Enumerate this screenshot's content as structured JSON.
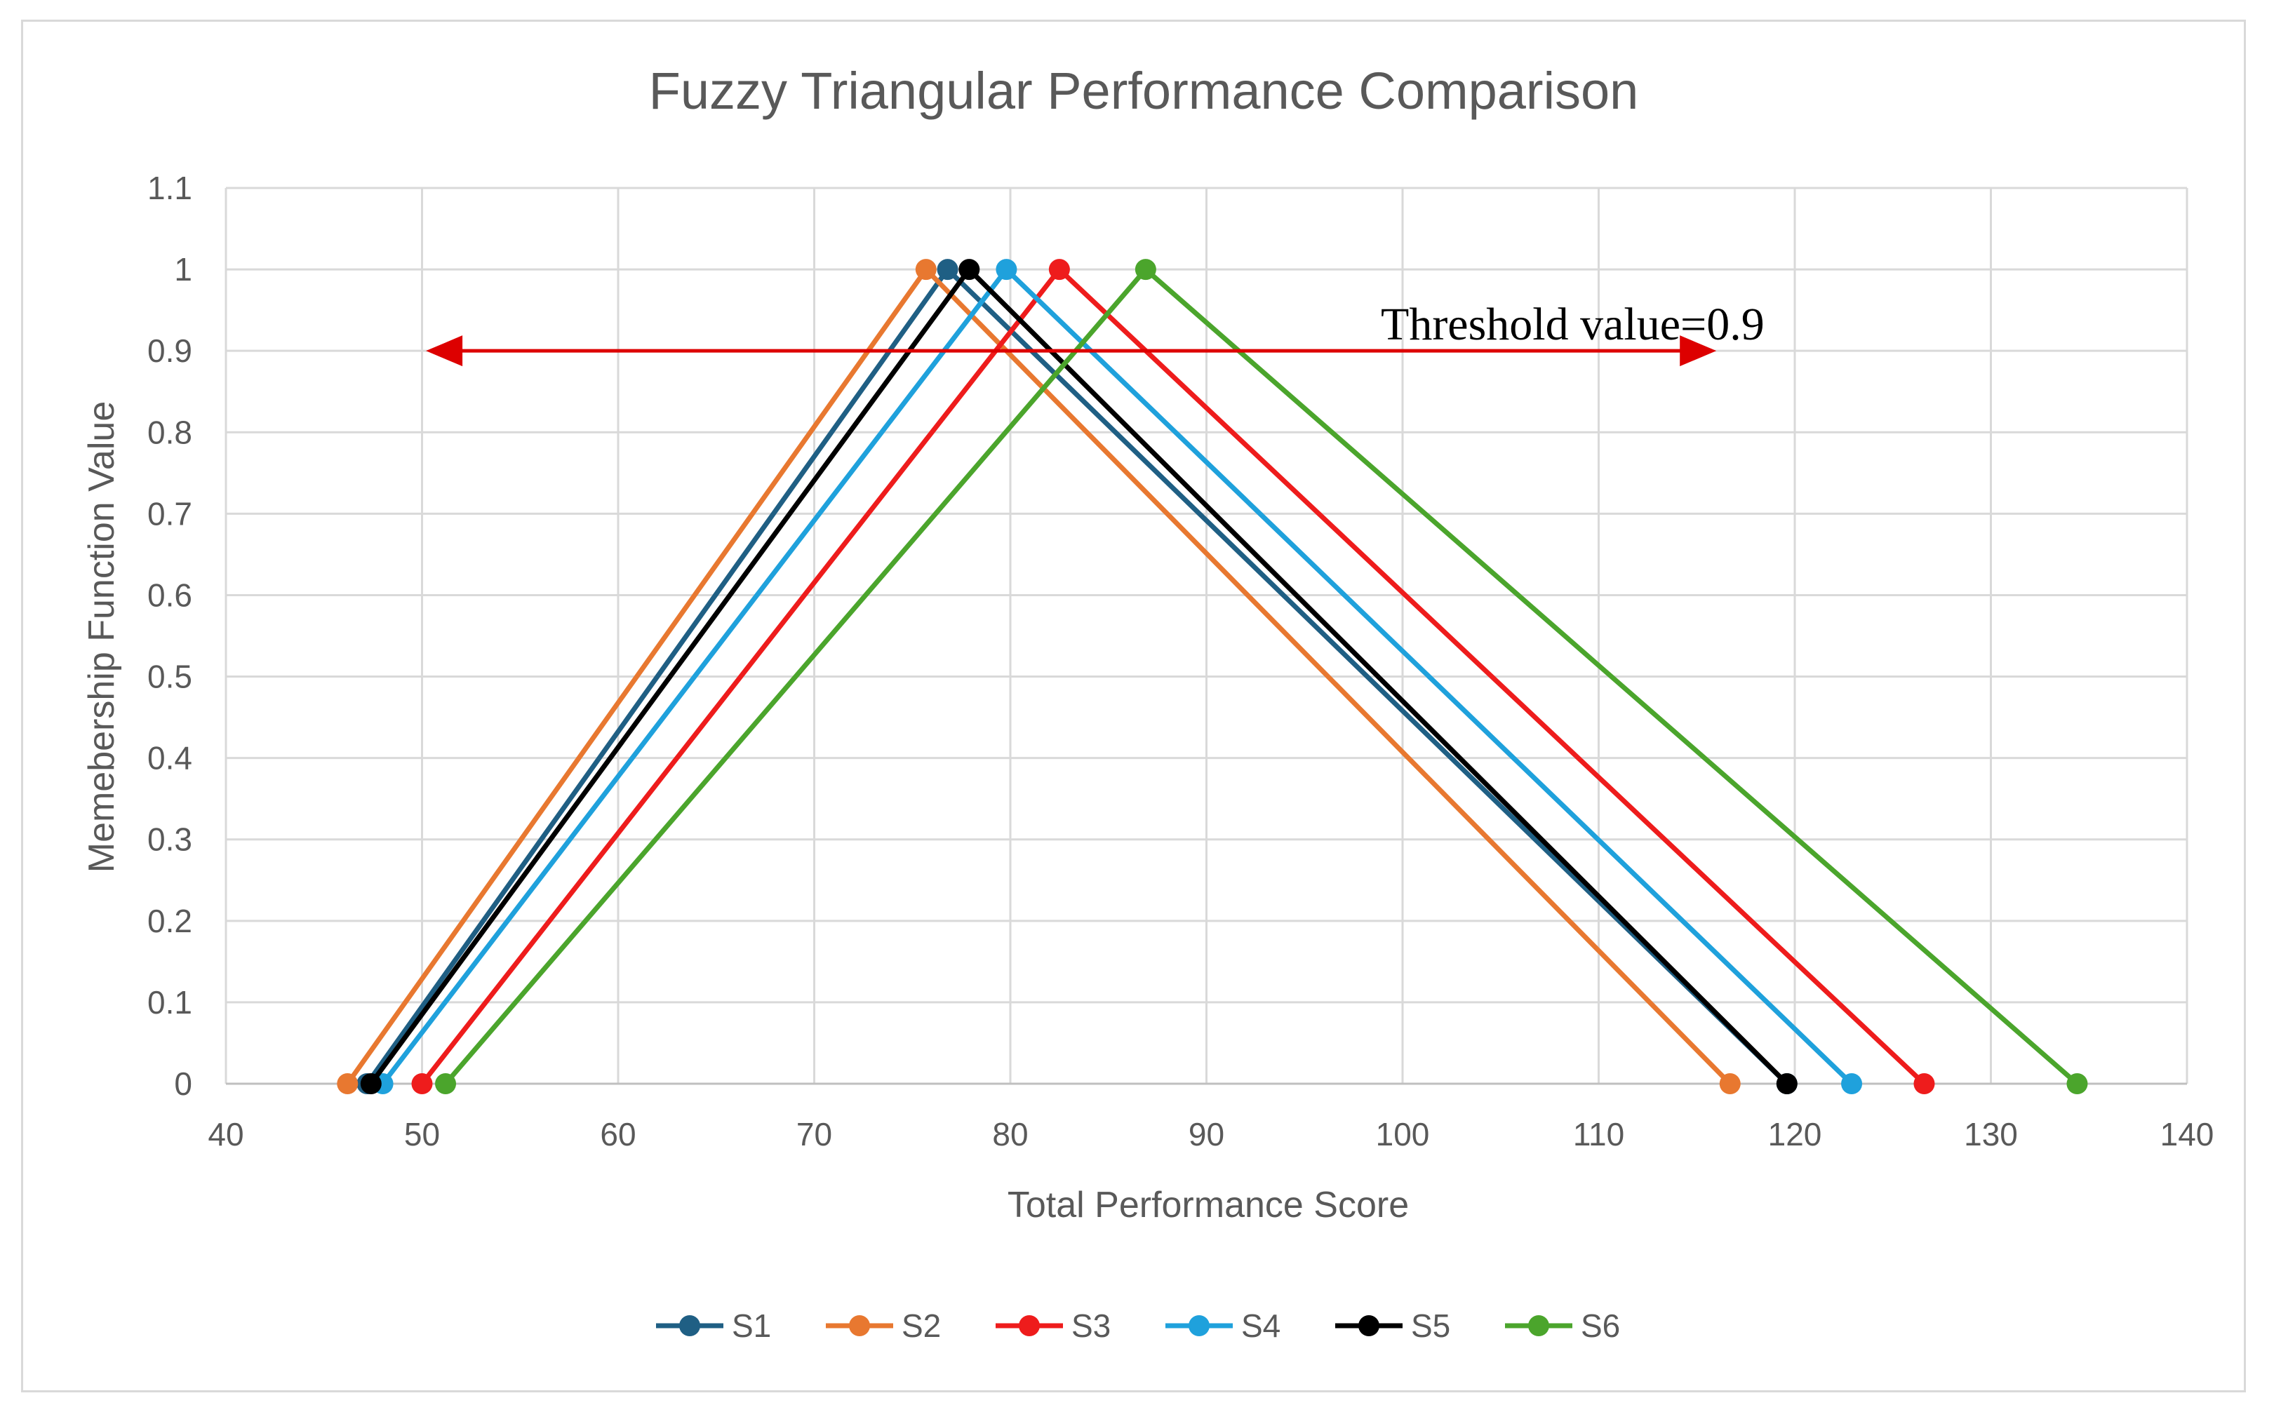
{
  "chart_data": {
    "type": "line",
    "title": "Fuzzy Triangular Performance Comparison",
    "xlabel": "Total Performance Score",
    "ylabel": "Memebership Function Value",
    "xlim": [
      40,
      140
    ],
    "ylim": [
      0,
      1.1
    ],
    "x_ticks": [
      "40",
      "50",
      "60",
      "70",
      "80",
      "90",
      "100",
      "110",
      "120",
      "130",
      "140"
    ],
    "y_ticks": [
      "0",
      "0.1",
      "0.2",
      "0.3",
      "0.4",
      "0.5",
      "0.6",
      "0.7",
      "0.8",
      "0.9",
      "1",
      "1.1"
    ],
    "grid": true,
    "legend_position": "bottom",
    "series": [
      {
        "name": "S1",
        "color": "#1f5f84",
        "x": [
          47.2,
          76.8,
          119.6
        ],
        "y": [
          0,
          1,
          0
        ]
      },
      {
        "name": "S2",
        "color": "#e87830",
        "x": [
          46.2,
          75.7,
          116.7
        ],
        "y": [
          0,
          1,
          0
        ]
      },
      {
        "name": "S3",
        "color": "#ee1c1c",
        "x": [
          50.0,
          82.5,
          126.6
        ],
        "y": [
          0,
          1,
          0
        ]
      },
      {
        "name": "S4",
        "color": "#1fa1dc",
        "x": [
          48.0,
          79.8,
          122.9
        ],
        "y": [
          0,
          1,
          0
        ]
      },
      {
        "name": "S5",
        "color": "#000000",
        "x": [
          47.4,
          77.9,
          119.6
        ],
        "y": [
          0,
          1,
          0
        ]
      },
      {
        "name": "S6",
        "color": "#4ba52c",
        "x": [
          51.2,
          86.9,
          134.4
        ],
        "y": [
          0,
          1,
          0
        ]
      }
    ],
    "annotation": {
      "text": "Threshold value=0.9",
      "y": 0.9,
      "x_start": 50.2,
      "x_end": 116.0,
      "color": "#dd0000"
    }
  }
}
